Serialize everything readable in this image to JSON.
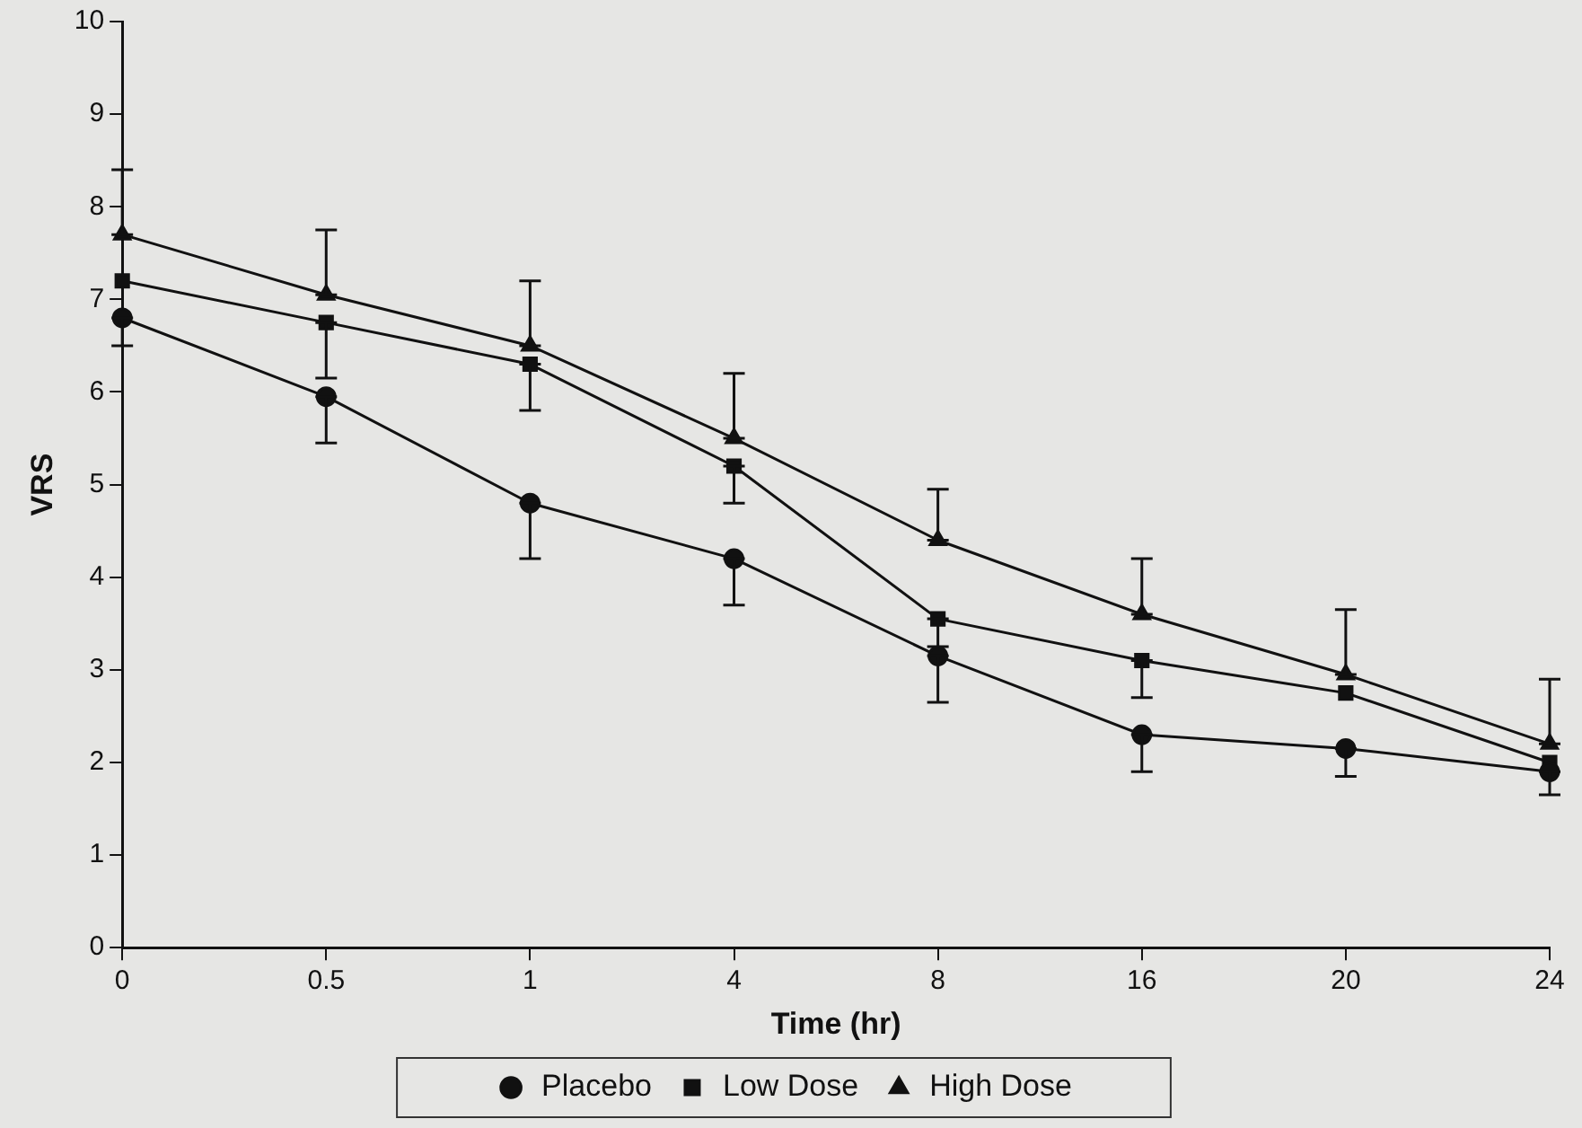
{
  "chart_data": {
    "type": "line",
    "xlabel": "Time (hr)",
    "ylabel": "VRS",
    "categories": [
      "0",
      "0.5",
      "1",
      "4",
      "8",
      "16",
      "20",
      "24"
    ],
    "ylim": [
      0,
      10
    ],
    "yticks": [
      0,
      1,
      2,
      3,
      4,
      5,
      6,
      7,
      8,
      9,
      10
    ],
    "grid": false,
    "legend": "bottom",
    "line_style": "solid",
    "series": [
      {
        "name": "Placebo",
        "color": "#111111",
        "marker": "circle",
        "values": [
          6.8,
          5.95,
          4.8,
          4.2,
          3.15,
          2.3,
          2.15,
          1.9
        ],
        "errors": [
          [
            6.5,
            6.8
          ],
          [
            5.45,
            5.95
          ],
          [
            4.2,
            4.8
          ],
          [
            3.7,
            4.2
          ],
          [
            2.65,
            3.15
          ],
          [
            1.9,
            2.3
          ],
          [
            1.85,
            2.15
          ],
          [
            1.65,
            1.9
          ]
        ]
      },
      {
        "name": "Low Dose",
        "color": "#111111",
        "marker": "square",
        "values": [
          7.2,
          6.75,
          6.3,
          5.2,
          3.55,
          3.1,
          2.75,
          2.0
        ],
        "errors": [
          null,
          [
            6.15,
            6.75
          ],
          [
            5.8,
            6.3
          ],
          [
            4.8,
            5.2
          ],
          [
            3.25,
            3.55
          ],
          [
            2.7,
            3.1
          ],
          null,
          null
        ]
      },
      {
        "name": "High Dose",
        "color": "#111111",
        "marker": "triangle",
        "values": [
          7.7,
          7.05,
          6.5,
          5.5,
          4.4,
          3.6,
          2.95,
          2.2
        ],
        "errors": [
          [
            7.7,
            8.4
          ],
          [
            7.05,
            7.75
          ],
          [
            6.5,
            7.2
          ],
          [
            5.5,
            6.2
          ],
          [
            4.4,
            4.95
          ],
          [
            3.6,
            4.2
          ],
          [
            2.95,
            3.65
          ],
          [
            2.2,
            2.9
          ]
        ]
      }
    ]
  }
}
